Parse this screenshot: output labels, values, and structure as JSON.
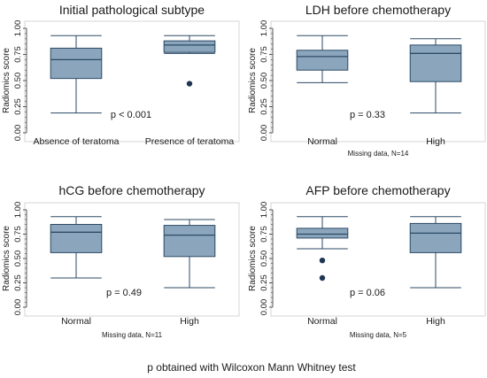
{
  "footnote": "p obtained with Wilcoxon Mann Whitney test",
  "style": {
    "box_fill": "#8ba6bc",
    "box_stroke": "#2c4a66",
    "outlier_color": "#1f3553",
    "axis_color": "#555555",
    "frame_color": "#bbbbbb"
  },
  "chart_data": [
    {
      "type": "box",
      "title": "Initial pathological subtype",
      "ylabel": "Radiomics score",
      "ylim": [
        0,
        1
      ],
      "yticks": [
        "0.00",
        "0.25",
        "0.50",
        "0.75",
        "1.00"
      ],
      "yminor_step": 0.05,
      "categories": [
        "Absence of teratoma",
        "Presence of teratoma"
      ],
      "boxes": [
        {
          "whisker_low": 0.19,
          "q1": 0.52,
          "median": 0.7,
          "q3": 0.81,
          "whisker_high": 0.93,
          "outliers": []
        },
        {
          "whisker_low": 0.76,
          "q1": 0.77,
          "median": 0.84,
          "q3": 0.88,
          "whisker_high": 0.93,
          "outliers": [
            0.47
          ]
        }
      ],
      "annotation": "p < 0.001",
      "missing_note": ""
    },
    {
      "type": "box",
      "title": "LDH before chemotherapy",
      "ylabel": "Radiomics score",
      "ylim": [
        0,
        1
      ],
      "yticks": [
        "0.00",
        "0.25",
        "0.50",
        "0.75",
        "1.00"
      ],
      "yminor_step": 0.05,
      "categories": [
        "Normal",
        "High"
      ],
      "boxes": [
        {
          "whisker_low": 0.48,
          "q1": 0.6,
          "median": 0.73,
          "q3": 0.79,
          "whisker_high": 0.93,
          "outliers": []
        },
        {
          "whisker_low": 0.19,
          "q1": 0.49,
          "median": 0.76,
          "q3": 0.84,
          "whisker_high": 0.9,
          "outliers": []
        }
      ],
      "annotation": "p = 0.33",
      "missing_note": "Missing data, N=14"
    },
    {
      "type": "box",
      "title": "hCG before chemotherapy",
      "ylabel": "Radiomics score",
      "ylim": [
        0,
        1
      ],
      "yticks": [
        "0.00",
        "0.25",
        "0.50",
        "0.75",
        "1.00"
      ],
      "yminor_step": 0.05,
      "categories": [
        "Normal",
        "High"
      ],
      "boxes": [
        {
          "whisker_low": 0.3,
          "q1": 0.56,
          "median": 0.77,
          "q3": 0.85,
          "whisker_high": 0.93,
          "outliers": []
        },
        {
          "whisker_low": 0.2,
          "q1": 0.52,
          "median": 0.74,
          "q3": 0.84,
          "whisker_high": 0.9,
          "outliers": []
        }
      ],
      "annotation": "p = 0.49",
      "missing_note": "Missing data, N=11"
    },
    {
      "type": "box",
      "title": "AFP before chemotherapy",
      "ylabel": "Radiomics score",
      "ylim": [
        0,
        1
      ],
      "yticks": [
        "0.00",
        "0.25",
        "0.50",
        "0.75",
        "1.00"
      ],
      "yminor_step": 0.05,
      "categories": [
        "Normal",
        "High"
      ],
      "boxes": [
        {
          "whisker_low": 0.6,
          "q1": 0.71,
          "median": 0.75,
          "q3": 0.81,
          "whisker_high": 0.93,
          "outliers": [
            0.48,
            0.3
          ]
        },
        {
          "whisker_low": 0.2,
          "q1": 0.56,
          "median": 0.76,
          "q3": 0.86,
          "whisker_high": 0.93,
          "outliers": []
        }
      ],
      "annotation": "p = 0.06",
      "missing_note": "Missing data, N=5"
    }
  ]
}
